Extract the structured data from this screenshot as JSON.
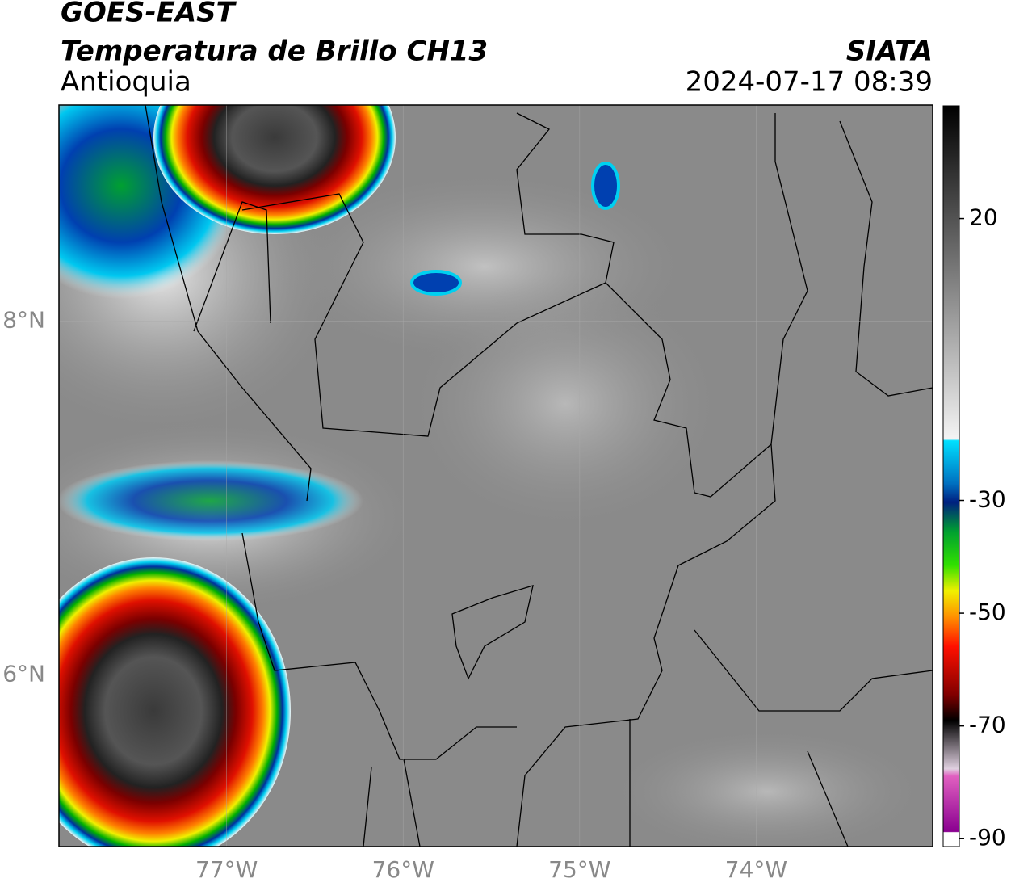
{
  "header": {
    "product": "GOES-EAST",
    "title": "Temperatura de Brillo CH13",
    "region": "Antioquia",
    "source": "SIATA",
    "datetime": "2024-07-17 08:39"
  },
  "map": {
    "lon_range": [
      -77.95,
      -73.0
    ],
    "lat_range": [
      5.03,
      9.22
    ],
    "lon_ticks": [
      {
        "value": -77,
        "label": "77°W"
      },
      {
        "value": -76,
        "label": "76°W"
      },
      {
        "value": -75,
        "label": "75°W"
      },
      {
        "value": -74,
        "label": "74°W"
      }
    ],
    "lat_ticks": [
      {
        "value": 8,
        "label": "8°N"
      },
      {
        "value": 6,
        "label": "6°N"
      }
    ]
  },
  "colorbar": {
    "range": [
      -91.4,
      40
    ],
    "ticks": [
      20,
      -30,
      -50,
      -70,
      -90
    ]
  }
}
